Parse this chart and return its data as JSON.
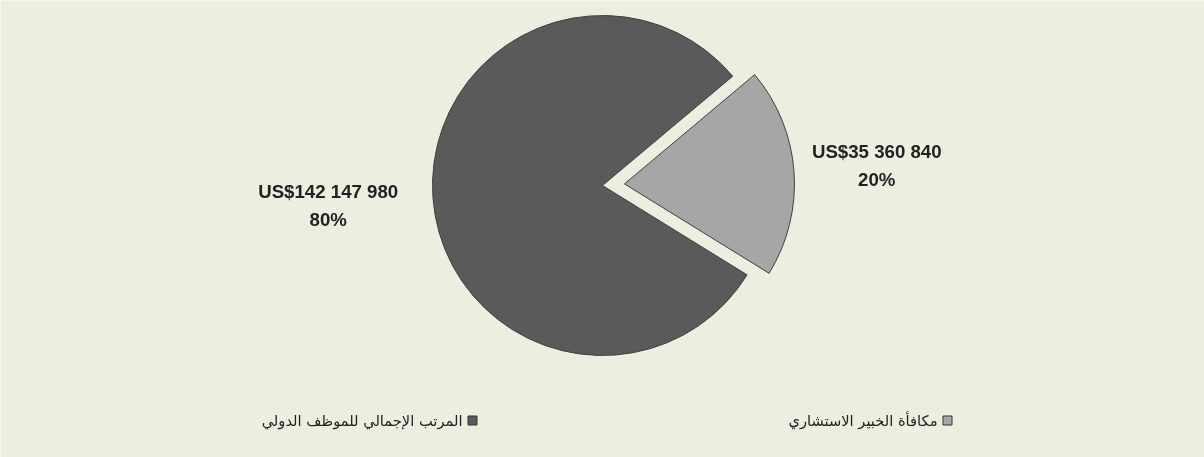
{
  "chart_data": {
    "type": "pie",
    "categories": [
      "مكافأة الخبير الاستشاري",
      "المرتب الإجمالي للموظف الدولي"
    ],
    "values": [
      35360840,
      142147980
    ],
    "colors": [
      "#a6a6a6",
      "#5a5a5a"
    ],
    "value_labels": [
      "US$35 360 840\n20%",
      "US$142 147 980\n80%"
    ],
    "legend": "bottom"
  }
}
